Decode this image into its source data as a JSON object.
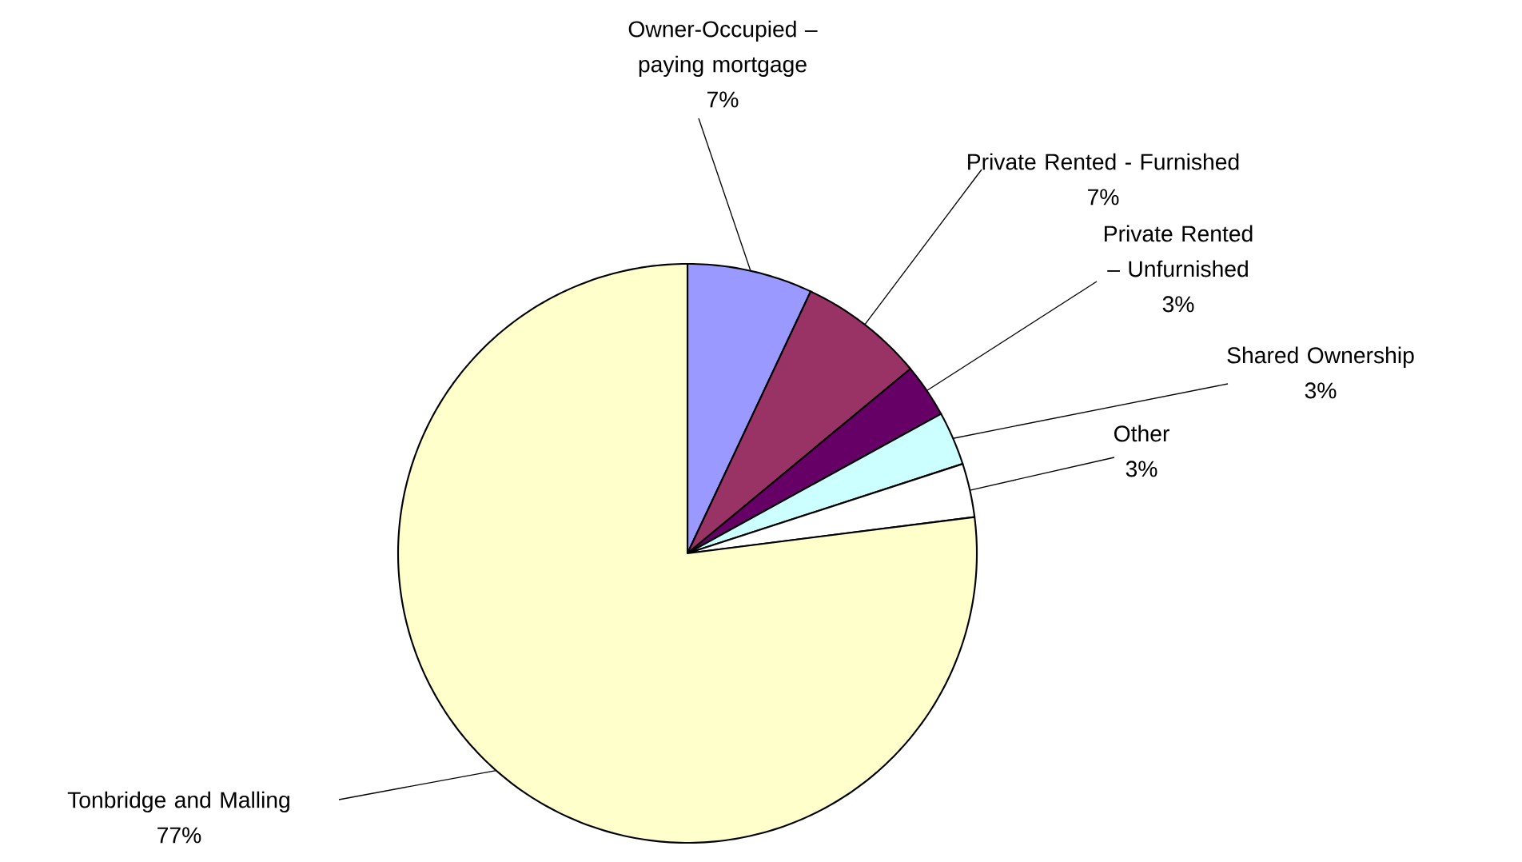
{
  "chart_data": {
    "type": "pie",
    "categories": [
      "Owner-Occupied – paying mortgage",
      "Private Rented - Furnished",
      "Private Rented – Unfurnished",
      "Shared Ownership",
      "Other",
      "Tonbridge and Malling"
    ],
    "values": [
      7,
      7,
      3,
      3,
      3,
      77
    ],
    "colors": [
      "#9999ff",
      "#993366",
      "#660066",
      "#ccffff",
      "#ffffff",
      "#ffffcc"
    ],
    "value_labels": [
      "7%",
      "7%",
      "3%",
      "3%",
      "3%",
      "77%"
    ]
  }
}
